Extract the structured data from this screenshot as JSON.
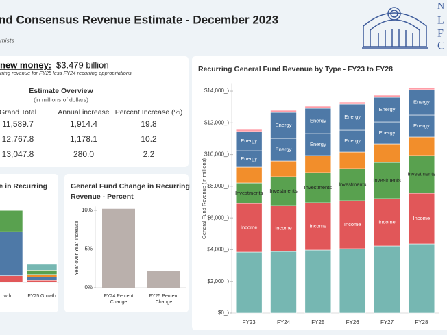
{
  "header": {
    "title": "nd Consensus Revenue Estimate - December 2023",
    "subtitle": "mists",
    "logo_letters": [
      "N",
      "L",
      "F",
      "C"
    ]
  },
  "summary": {
    "heading": "new money:",
    "amount": "$3.479 billion",
    "note": "rring revenue for FY25 less FY24 recurring appropriations."
  },
  "table": {
    "title": "Estimate Overview",
    "subtitle": "(in millions of dollars)",
    "columns": [
      "Grand Total",
      "Annual increase",
      "Percent Increase (%)"
    ],
    "rows": [
      [
        "11,589.7",
        "1,914.4",
        "19.8"
      ],
      [
        "12,767.8",
        "1,178.1",
        "10.2"
      ],
      [
        "13,047.8",
        "280.0",
        "2.2"
      ]
    ]
  },
  "chart_data": [
    {
      "type": "stacked_bar",
      "title": "Recurring General Fund Revenue by Type - FY23 to FY28",
      "y_label": "General Fund Revenue (in millions)",
      "categories": [
        "FY23",
        "FY24",
        "FY25",
        "FY26",
        "FY27",
        "FY28"
      ],
      "ylim": [
        0,
        14500
      ],
      "yticks": [
        {
          "value": 0,
          "label": "$0_)"
        },
        {
          "value": 2000,
          "label": "$2,000_)"
        },
        {
          "value": 4000,
          "label": "$4,000_)"
        },
        {
          "value": 6000,
          "label": "$6,000_)"
        },
        {
          "value": 8000,
          "label": "$8,000_)"
        },
        {
          "value": 10000,
          "label": "$10,000_)"
        },
        {
          "value": 12000,
          "label": "$12,000_)"
        },
        {
          "value": 14000,
          "label": "$14,000_)"
        }
      ],
      "series": [
        {
          "name": null,
          "color": "#76b7b2",
          "values": [
            3846,
            3889,
            3976,
            4062,
            4235,
            4365
          ]
        },
        {
          "name": "Income",
          "color": "#e15759",
          "values": [
            3068,
            2895,
            2982,
            3025,
            2982,
            3198
          ]
        },
        {
          "name": "Investments",
          "color": "#59a14f",
          "values": [
            1296,
            1815,
            1901,
            2031,
            2290,
            2377
          ]
        },
        {
          "name": null,
          "color": "#f28e2b",
          "values": [
            994,
            994,
            1080,
            1037,
            1167,
            1167
          ]
        },
        {
          "name": "Energy",
          "color": "#4e79a7",
          "values": [
            1037,
            1426,
            1383,
            1383,
            1383,
            1383
          ]
        },
        {
          "name": "Energy",
          "color": "#4e79a7",
          "values": [
            1210,
            1642,
            1599,
            1642,
            1556,
            1599
          ]
        },
        {
          "name": null,
          "color": "#ff9da7",
          "values": [
            130,
            130,
            130,
            130,
            130,
            130
          ]
        }
      ]
    },
    {
      "type": "stacked_bar",
      "title": "ge in Recurring",
      "categories": [
        "wth",
        "FY25 Growth"
      ],
      "ylim": [
        0,
        1300
      ],
      "series": [
        {
          "name": null,
          "color": "#e15759",
          "values": [
            93,
            28
          ]
        },
        {
          "name": null,
          "color": "#4e79a7",
          "values": [
            645,
            47
          ]
        },
        {
          "name": null,
          "color": "#f28e2b",
          "values": [
            0,
            37
          ]
        },
        {
          "name": null,
          "color": "#59a14f",
          "values": [
            310,
            65
          ]
        },
        {
          "name": null,
          "color": "#76b7b2",
          "values": [
            0,
            84
          ]
        }
      ]
    },
    {
      "type": "bar",
      "title": "General Fund Change in Recurring Revenue - Percent",
      "y_label": "Year over Year Increase",
      "categories": [
        "FY24 Percent Change",
        "FY25 Percent Change"
      ],
      "values": [
        10.2,
        2.2
      ],
      "color": "#bab0ac",
      "ylim": [
        0,
        10.5
      ],
      "yticks": [
        {
          "value": 0,
          "label": "0%"
        },
        {
          "value": 5,
          "label": "5%"
        },
        {
          "value": 10,
          "label": "10%"
        }
      ]
    }
  ]
}
